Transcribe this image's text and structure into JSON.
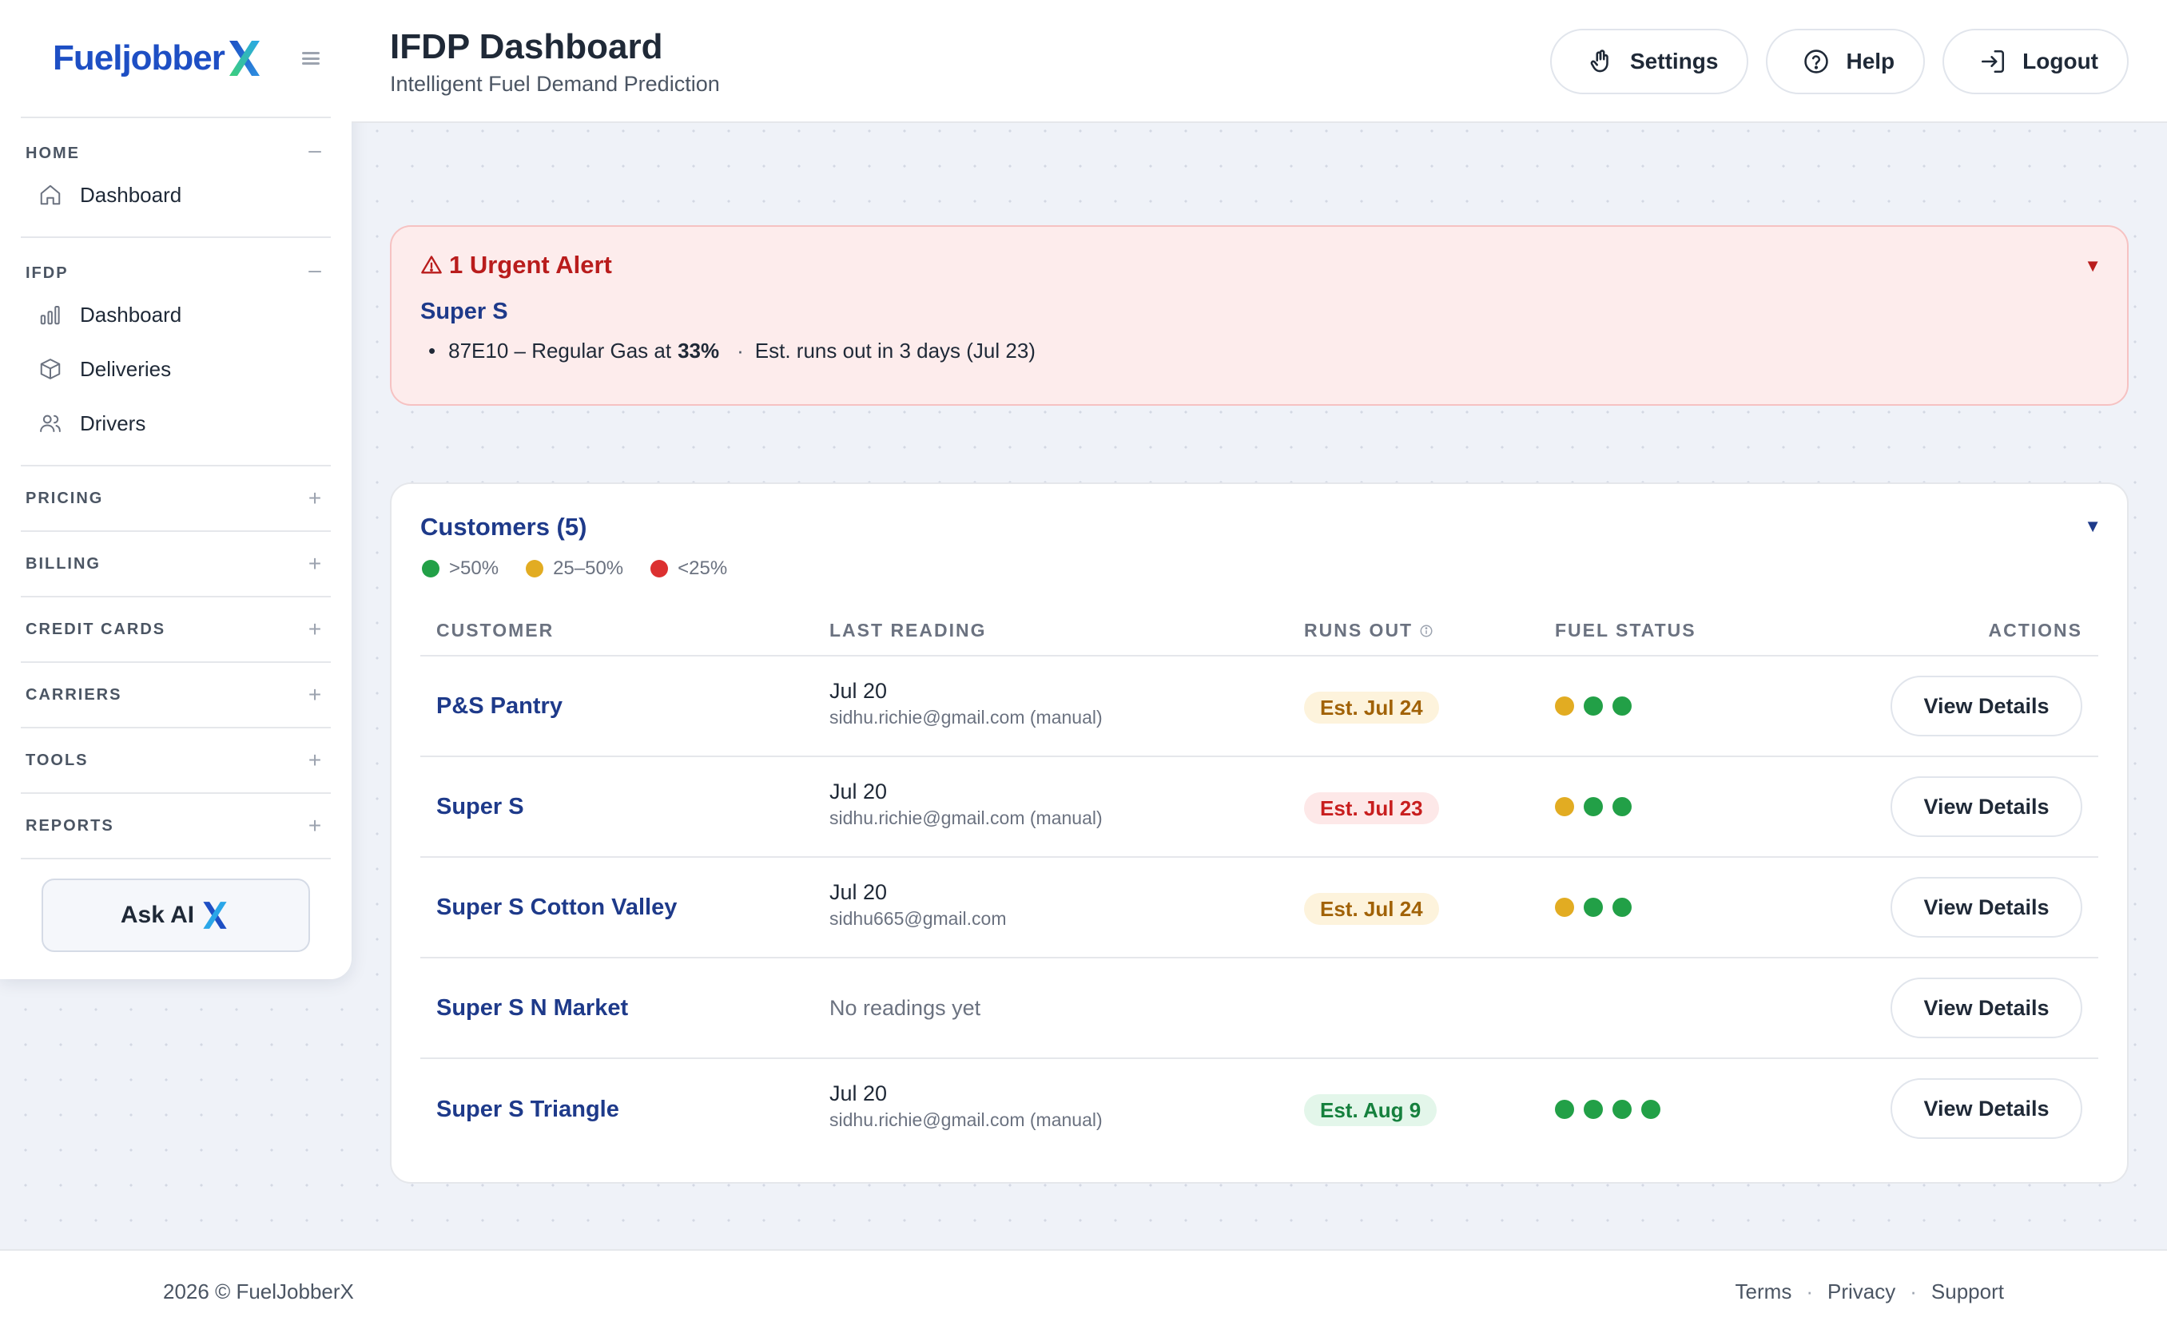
{
  "brand": {
    "name": "Fueljobber",
    "logo_icon": "brand-x-icon"
  },
  "sidebar": {
    "sections": [
      {
        "label": "HOME",
        "toggle": "–",
        "items": [
          {
            "label": "Dashboard",
            "icon": "home-icon"
          }
        ]
      },
      {
        "label": "IFDP",
        "toggle": "–",
        "items": [
          {
            "label": "Dashboard",
            "icon": "bar-chart-icon"
          },
          {
            "label": "Deliveries",
            "icon": "package-icon"
          },
          {
            "label": "Drivers",
            "icon": "users-icon"
          }
        ]
      },
      {
        "label": "PRICING",
        "toggle": "+"
      },
      {
        "label": "BILLING",
        "toggle": "+"
      },
      {
        "label": "CREDIT CARDS",
        "toggle": "+"
      },
      {
        "label": "CARRIERS",
        "toggle": "+"
      },
      {
        "label": "TOOLS",
        "toggle": "+"
      },
      {
        "label": "REPORTS",
        "toggle": "+"
      }
    ],
    "ask_ai": "Ask AI"
  },
  "header": {
    "title": "IFDP Dashboard",
    "subtitle": "Intelligent Fuel Demand Prediction",
    "buttons": [
      {
        "label": "Settings",
        "icon": "settings-icon"
      },
      {
        "label": "Help",
        "icon": "help-circle-icon"
      },
      {
        "label": "Logout",
        "icon": "logout-icon"
      }
    ]
  },
  "alert": {
    "title": "1 Urgent Alert",
    "caret": "▼",
    "customer": "Super S",
    "bullet": "•",
    "line_prefix": "87E10 – Regular Gas at",
    "level": "33%",
    "separator": "·",
    "line_suffix": "Est. runs out in 3 days (Jul 23)"
  },
  "customers": {
    "title": "Customers (5)",
    "caret": "▼",
    "legend": [
      {
        "label": ">50%",
        "color": "#22a047"
      },
      {
        "label": "25–50%",
        "color": "#e2ac22"
      },
      {
        "label": "<25%",
        "color": "#dc3030"
      }
    ],
    "columns": {
      "customer": "CUSTOMER",
      "last_reading": "LAST READING",
      "runs_out": "RUNS OUT",
      "fuel_status": "FUEL STATUS",
      "actions": "ACTIONS"
    },
    "rows": [
      {
        "name": "P&S Pantry",
        "date": "Jul 20",
        "source": "sidhu.richie@gmail.com (manual)",
        "runs_out": "Est. Jul 24",
        "tone": "amber",
        "fuel": [
          "#e2ac22",
          "#22a047",
          "#22a047"
        ],
        "action": "View Details"
      },
      {
        "name": "Super S",
        "date": "Jul 20",
        "source": "sidhu.richie@gmail.com (manual)",
        "runs_out": "Est. Jul 23",
        "tone": "red",
        "fuel": [
          "#e2ac22",
          "#22a047",
          "#22a047"
        ],
        "action": "View Details"
      },
      {
        "name": "Super S Cotton Valley",
        "date": "Jul 20",
        "source": "sidhu665@gmail.com",
        "runs_out": "Est. Jul 24",
        "tone": "amber",
        "fuel": [
          "#e2ac22",
          "#22a047",
          "#22a047"
        ],
        "action": "View Details"
      },
      {
        "name": "Super S N Market",
        "date": "No readings yet",
        "source": "",
        "runs_out": "",
        "tone": "",
        "fuel": [],
        "action": "View Details"
      },
      {
        "name": "Super S Triangle",
        "date": "Jul 20",
        "source": "sidhu.richie@gmail.com (manual)",
        "runs_out": "Est. Aug 9",
        "tone": "green",
        "fuel": [
          "#22a047",
          "#22a047",
          "#22a047",
          "#22a047"
        ],
        "action": "View Details"
      }
    ]
  },
  "footer": {
    "copyright": "2026 © FuelJobberX",
    "separator": "·",
    "links": [
      "Terms",
      "Privacy",
      "Support"
    ]
  }
}
